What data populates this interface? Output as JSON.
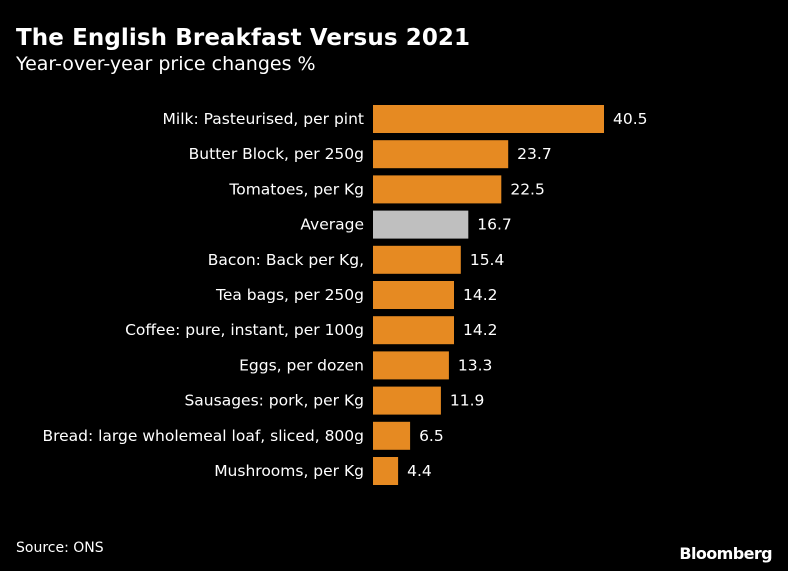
{
  "chart_data": {
    "type": "bar",
    "orientation": "horizontal",
    "title": "The English Breakfast Versus 2021",
    "subtitle": "Year-over-year price changes %",
    "categories": [
      "Milk: Pasteurised, per pint",
      "Butter Block, per 250g",
      "Tomatoes, per Kg",
      "Average",
      "Bacon: Back per Kg,",
      "Tea bags, per 250g",
      "Coffee: pure, instant, per 100g",
      "Eggs, per dozen",
      "Sausages: pork, per Kg",
      "Bread: large wholemeal loaf, sliced, 800g",
      "Mushrooms, per Kg"
    ],
    "values": [
      40.5,
      23.7,
      22.5,
      16.7,
      15.4,
      14.2,
      14.2,
      13.3,
      11.9,
      6.5,
      4.4
    ],
    "value_labels": [
      "40.5",
      "23.7",
      "22.5",
      "16.7",
      "15.4",
      "14.2",
      "14.2",
      "13.3",
      "11.9",
      "6.5",
      "4.4"
    ],
    "highlight_category": "Average",
    "xlim": [
      0,
      45
    ],
    "xlabel": "",
    "ylabel": "",
    "grid": false,
    "colors": {
      "bar": "#e68a22",
      "highlight": "#bfbfbf",
      "background": "#000000",
      "text": "#ffffff"
    }
  },
  "footer": {
    "source": "Source: ONS",
    "brand": "Bloomberg"
  }
}
